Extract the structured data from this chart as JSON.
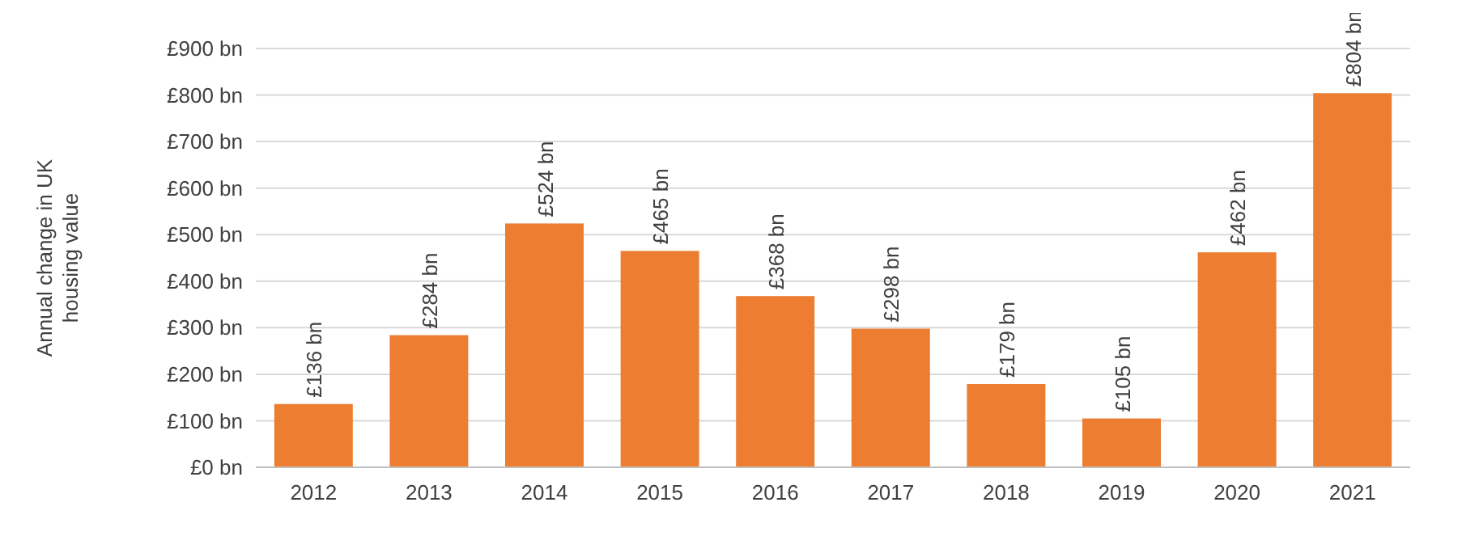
{
  "chart_data": {
    "type": "bar",
    "ylabel": "Annual change in UK housing value",
    "categories": [
      "2012",
      "2013",
      "2014",
      "2015",
      "2016",
      "2017",
      "2018",
      "2019",
      "2020",
      "2021"
    ],
    "values": [
      136,
      284,
      524,
      465,
      368,
      298,
      179,
      105,
      462,
      804
    ],
    "value_labels": [
      "£136 bn",
      "£284 bn",
      "£524 bn",
      "£465 bn",
      "£368 bn",
      "£298 bn",
      "£179 bn",
      "£105 bn",
      "£462 bn",
      "£804 bn"
    ],
    "color": "#ed7d31",
    "ylim": [
      0,
      900
    ],
    "yticks": [
      {
        "value": 0,
        "label": "£0 bn"
      },
      {
        "value": 100,
        "label": "£100 bn"
      },
      {
        "value": 200,
        "label": "£200 bn"
      },
      {
        "value": 300,
        "label": "£300 bn"
      },
      {
        "value": 400,
        "label": "£400 bn"
      },
      {
        "value": 500,
        "label": "£500 bn"
      },
      {
        "value": 600,
        "label": "£600 bn"
      },
      {
        "value": 700,
        "label": "£700 bn"
      },
      {
        "value": 800,
        "label": "£800 bn"
      },
      {
        "value": 900,
        "label": "£900 bn"
      }
    ],
    "grid": "y"
  }
}
